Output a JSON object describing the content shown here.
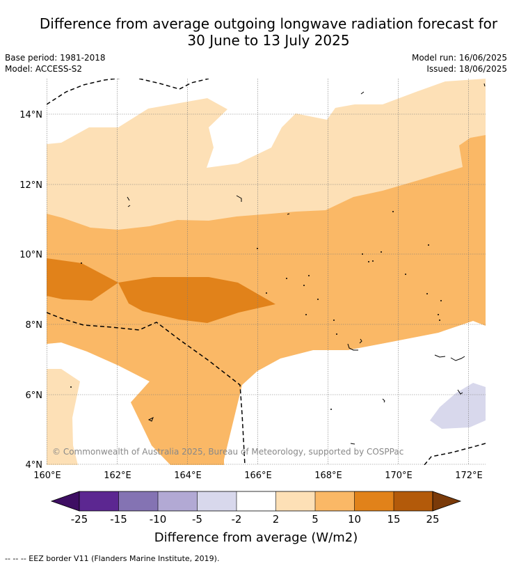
{
  "title": {
    "line1": "Difference from average outgoing longwave radiation forecast for",
    "line2": "30 June to 13 July 2025"
  },
  "meta": {
    "base_period": "Base period: 1981-2018",
    "model": "Model: ACCESS-S2",
    "model_run": "Model run: 16/06/2025",
    "issued": "Issued: 18/06/2025"
  },
  "map": {
    "lon_range": [
      160,
      172.5
    ],
    "lat_range": [
      4,
      15
    ],
    "x_ticks": [
      "160°E",
      "162°E",
      "164°E",
      "166°E",
      "168°E",
      "170°E",
      "172°E"
    ],
    "y_ticks": [
      "4°N",
      "6°N",
      "8°N",
      "10°N",
      "12°N",
      "14°N"
    ],
    "copyright": "© Commonwealth of Australia 2025, Bureau of Meteorology, supported by COSPPac",
    "colors": {
      "pos_2_5": "#fde0b6",
      "pos_5_10": "#fab866",
      "pos_10_15": "#e1821a",
      "neg_2_5": "#d8d8ec"
    }
  },
  "colorbar": {
    "label": "Difference from average (W/m2)",
    "ticks": [
      "-25",
      "-15",
      "-10",
      "-5",
      "-2",
      "2",
      "5",
      "10",
      "15",
      "25"
    ],
    "colors": [
      "#3e0e63",
      "#5c2791",
      "#8473b3",
      "#b2a9d4",
      "#d8d8ec",
      "#ffffff",
      "#fde0b6",
      "#fab866",
      "#e1821a",
      "#b35a0a",
      "#7a3a09"
    ]
  },
  "footer": {
    "legend": "--  --  -- EEZ border V11 (Flanders Marine Institute, 2019)."
  }
}
